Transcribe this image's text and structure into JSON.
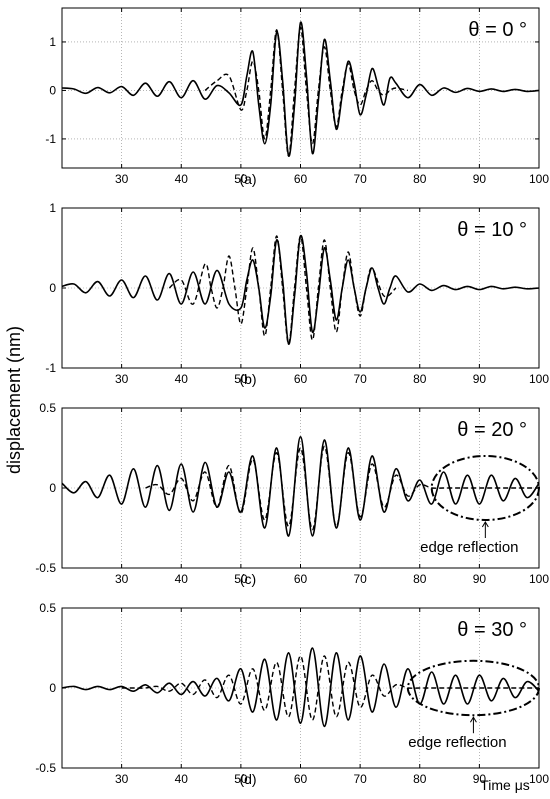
{
  "chart_data": {
    "ylabel": "displacement (nm)",
    "xlabel": "Time μs",
    "line_color": "#000000",
    "grid": true,
    "panels": [
      {
        "type": "line",
        "theta_label": "θ = 0 °",
        "panel_label": "(a)",
        "xlim": [
          20,
          100
        ],
        "ylim": [
          -1.6,
          1.7
        ],
        "x_ticks": [
          "30",
          "40",
          "50",
          "60",
          "70",
          "80",
          "90",
          "100"
        ],
        "y_ticks": [
          "1",
          "0",
          "-1"
        ],
        "y_tick_values": [
          1,
          0,
          -1
        ],
        "series": [
          {
            "style": "solid",
            "x": [
              20,
              22,
              24,
              26,
              28,
              30,
              32,
              34,
              36,
              38,
              40,
              42,
              44,
              46,
              48,
              50,
              51,
              52,
              53,
              54,
              55,
              56,
              57,
              58,
              59,
              60,
              61,
              62,
              63,
              64,
              65,
              66,
              67,
              68,
              69,
              70,
              71,
              72,
              73,
              74,
              75,
              76,
              78,
              80,
              82,
              84,
              86,
              88,
              90,
              92,
              94,
              96,
              98,
              100
            ],
            "y": [
              0.05,
              0.03,
              -0.06,
              0.06,
              -0.05,
              0.08,
              -0.1,
              0.15,
              -0.12,
              0.18,
              -0.15,
              0.2,
              -0.18,
              0.1,
              -0.05,
              -0.3,
              0.3,
              0.8,
              -0.3,
              -1.1,
              -0.3,
              1.2,
              0.2,
              -1.35,
              -0.3,
              1.4,
              0.3,
              -1.3,
              -0.2,
              1.05,
              0.2,
              -0.8,
              -0.1,
              0.6,
              0.15,
              -0.5,
              -0.1,
              0.45,
              0.1,
              -0.3,
              0.25,
              0.15,
              -0.15,
              0.12,
              -0.1,
              0.05,
              -0.04,
              0.04,
              -0.02,
              0.03,
              -0.02,
              0.02,
              -0.02,
              0.0
            ]
          },
          {
            "style": "dashed",
            "x": [
              44,
              46,
              48,
              50,
              51,
              52,
              53,
              54,
              55,
              56,
              57,
              58,
              59,
              60,
              61,
              62,
              63,
              64,
              65,
              66,
              67,
              68,
              69,
              70,
              71,
              72,
              73,
              74,
              75,
              76,
              78
            ],
            "y": [
              0.0,
              0.2,
              0.3,
              -0.4,
              0.0,
              0.6,
              0.0,
              -1.0,
              0.0,
              1.25,
              0.0,
              -1.35,
              0.0,
              1.3,
              0.0,
              -1.1,
              0.0,
              0.9,
              0.0,
              -0.75,
              0.0,
              0.55,
              0.0,
              -0.3,
              0.0,
              0.2,
              0.0,
              -0.1,
              0.0,
              0.05,
              0.0
            ]
          }
        ]
      },
      {
        "type": "line",
        "theta_label": "θ = 10 °",
        "panel_label": "(b)",
        "xlim": [
          20,
          100
        ],
        "ylim": [
          -1.0,
          1.0
        ],
        "x_ticks": [
          "30",
          "40",
          "50",
          "60",
          "70",
          "80",
          "90",
          "100"
        ],
        "y_ticks": [
          "1",
          "0",
          "-1"
        ],
        "y_tick_values": [
          1,
          0,
          -1
        ],
        "series": [
          {
            "style": "solid",
            "x": [
              20,
              22,
              24,
              26,
              28,
              30,
              32,
              34,
              36,
              38,
              40,
              42,
              44,
              46,
              48,
              50,
              51,
              52,
              53,
              54,
              55,
              56,
              57,
              58,
              59,
              60,
              61,
              62,
              63,
              64,
              65,
              66,
              67,
              68,
              69,
              70,
              71,
              72,
              73,
              74,
              75,
              76,
              78,
              80,
              82,
              84,
              86,
              88,
              90,
              92,
              94,
              96,
              98,
              100
            ],
            "y": [
              0.02,
              0.05,
              -0.06,
              0.08,
              -0.1,
              0.1,
              -0.12,
              0.15,
              -0.15,
              0.18,
              -0.2,
              0.2,
              -0.2,
              0.22,
              -0.2,
              -0.25,
              0.1,
              0.35,
              0.0,
              -0.5,
              -0.1,
              0.6,
              0.1,
              -0.7,
              -0.1,
              0.65,
              0.2,
              -0.55,
              -0.1,
              0.5,
              0.1,
              -0.4,
              0.0,
              0.35,
              0.0,
              -0.3,
              0.0,
              0.25,
              0.0,
              -0.2,
              0.0,
              0.15,
              -0.05,
              0.05,
              -0.03,
              0.03,
              -0.02,
              0.02,
              -0.02,
              0.02,
              -0.01,
              0.01,
              -0.01,
              0.0
            ]
          },
          {
            "style": "dashed",
            "x": [
              38,
              40,
              42,
              44,
              45,
              46,
              47,
              48,
              49,
              50,
              51,
              52,
              53,
              54,
              55,
              56,
              57,
              58,
              59,
              60,
              61,
              62,
              63,
              64,
              65,
              66,
              67,
              68,
              69,
              70,
              71,
              72,
              74,
              76
            ],
            "y": [
              0.0,
              0.1,
              -0.2,
              0.3,
              0.0,
              -0.25,
              0.0,
              0.4,
              0.0,
              -0.45,
              0.0,
              0.5,
              0.0,
              -0.6,
              0.0,
              0.65,
              0.0,
              -0.7,
              0.0,
              0.65,
              0.0,
              -0.65,
              0.0,
              0.6,
              0.0,
              -0.55,
              0.0,
              0.45,
              0.0,
              -0.35,
              0.0,
              0.25,
              -0.1,
              0.0
            ]
          }
        ]
      },
      {
        "type": "line",
        "theta_label": "θ = 20 °",
        "panel_label": "(c)",
        "xlim": [
          20,
          100
        ],
        "ylim": [
          -0.5,
          0.5
        ],
        "x_ticks": [
          "30",
          "40",
          "50",
          "60",
          "70",
          "80",
          "90",
          "100"
        ],
        "y_ticks": [
          "0.5",
          "0",
          "-0.5"
        ],
        "y_tick_values": [
          0.5,
          0,
          -0.5
        ],
        "annotation": "edge reflection",
        "ellipse_center": [
          91,
          0.0
        ],
        "ellipse_radii": [
          9,
          0.2
        ],
        "series": [
          {
            "style": "solid",
            "x": [
              20,
              22,
              24,
              26,
              28,
              30,
              32,
              34,
              36,
              38,
              40,
              42,
              44,
              46,
              48,
              50,
              52,
              54,
              56,
              58,
              60,
              62,
              64,
              66,
              68,
              70,
              72,
              74,
              76,
              78,
              80,
              82,
              84,
              86,
              88,
              90,
              92,
              94,
              96,
              98,
              100
            ],
            "y": [
              0.03,
              -0.03,
              0.04,
              -0.06,
              0.08,
              -0.1,
              0.12,
              -0.12,
              0.14,
              -0.14,
              0.15,
              -0.15,
              0.16,
              -0.12,
              0.1,
              -0.15,
              0.2,
              -0.25,
              0.25,
              -0.3,
              0.32,
              -0.3,
              0.3,
              -0.25,
              0.25,
              -0.2,
              0.2,
              -0.15,
              0.12,
              -0.08,
              0.05,
              -0.1,
              0.1,
              -0.1,
              0.08,
              -0.1,
              0.08,
              -0.08,
              0.06,
              -0.06,
              0.03
            ]
          },
          {
            "style": "dashed",
            "x": [
              34,
              36,
              38,
              40,
              42,
              44,
              46,
              48,
              50,
              52,
              54,
              56,
              58,
              60,
              62,
              64,
              66,
              68,
              70,
              72,
              74,
              76,
              78,
              80,
              82,
              84,
              86,
              88,
              90,
              92,
              94,
              96,
              98,
              100
            ],
            "y": [
              0.0,
              0.02,
              -0.04,
              0.06,
              -0.08,
              0.1,
              -0.12,
              0.14,
              -0.16,
              0.18,
              -0.2,
              0.22,
              -0.24,
              0.25,
              -0.26,
              0.26,
              -0.24,
              0.22,
              -0.18,
              0.15,
              -0.12,
              0.08,
              -0.05,
              0.02,
              0.0,
              0.0,
              0.0,
              0.0,
              0.0,
              0.0,
              0.0,
              0.0,
              0.0,
              0.0
            ]
          }
        ]
      },
      {
        "type": "line",
        "theta_label": "θ = 30 °",
        "panel_label": "(d)",
        "xlim": [
          20,
          100
        ],
        "ylim": [
          -0.5,
          0.5
        ],
        "x_ticks": [
          "30",
          "40",
          "50",
          "60",
          "70",
          "80",
          "90",
          "100"
        ],
        "y_ticks": [
          "0.5",
          "0",
          "-0.5"
        ],
        "y_tick_values": [
          0.5,
          0,
          -0.5
        ],
        "annotation": "edge reflection",
        "ellipse_center": [
          89,
          0.0
        ],
        "ellipse_radii": [
          11,
          0.17
        ],
        "series": [
          {
            "style": "solid",
            "x": [
              20,
              22,
              24,
              26,
              28,
              30,
              32,
              34,
              36,
              38,
              40,
              42,
              44,
              46,
              48,
              50,
              52,
              54,
              56,
              58,
              60,
              62,
              64,
              66,
              68,
              70,
              72,
              74,
              76,
              78,
              80,
              82,
              84,
              86,
              88,
              90,
              92,
              94,
              96,
              98,
              100
            ],
            "y": [
              0.0,
              0.01,
              -0.01,
              0.01,
              -0.01,
              0.01,
              -0.02,
              0.02,
              -0.03,
              0.03,
              -0.04,
              0.04,
              -0.05,
              0.06,
              -0.08,
              0.12,
              -0.15,
              0.18,
              -0.2,
              0.22,
              -0.22,
              0.25,
              -0.24,
              0.22,
              -0.2,
              0.2,
              -0.15,
              0.15,
              -0.12,
              0.12,
              -0.1,
              0.1,
              -0.1,
              0.08,
              -0.1,
              0.08,
              -0.08,
              0.06,
              -0.06,
              0.04,
              -0.02
            ]
          },
          {
            "style": "dashed",
            "x": [
              30,
              32,
              34,
              36,
              38,
              40,
              42,
              44,
              46,
              48,
              50,
              52,
              54,
              56,
              58,
              60,
              62,
              64,
              66,
              68,
              70,
              72,
              74,
              76,
              78,
              80,
              82,
              84,
              86,
              88,
              90,
              92,
              94,
              96,
              98,
              100
            ],
            "y": [
              0.0,
              0.0,
              0.0,
              0.01,
              -0.02,
              0.03,
              -0.04,
              0.05,
              -0.06,
              0.08,
              -0.1,
              0.12,
              -0.14,
              0.16,
              -0.18,
              0.2,
              -0.2,
              0.2,
              -0.18,
              0.16,
              -0.12,
              0.08,
              -0.05,
              0.02,
              0.0,
              0.0,
              0.0,
              0.0,
              0.0,
              0.0,
              0.0,
              0.0,
              0.0,
              0.0,
              0.0,
              0.0
            ]
          }
        ]
      }
    ]
  }
}
